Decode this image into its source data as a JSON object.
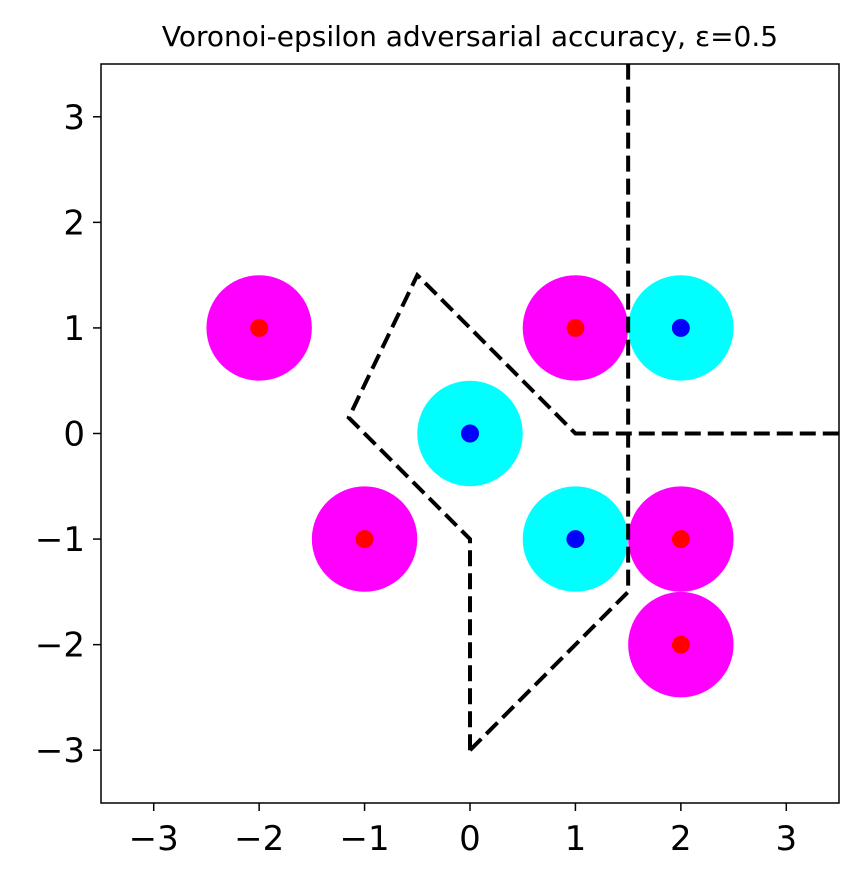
{
  "chart_data": {
    "type": "scatter",
    "title": "Voronoi-epsilon adversarial accuracy, ε=0.5",
    "xlabel": "",
    "ylabel": "",
    "xlim": [
      -3.5,
      3.5
    ],
    "ylim": [
      -3.5,
      3.5
    ],
    "xticks": [
      -3,
      -2,
      -1,
      0,
      1,
      2,
      3
    ],
    "yticks": [
      -3,
      -2,
      -1,
      0,
      1,
      2,
      3
    ],
    "xtick_labels": [
      "−3",
      "−2",
      "−1",
      "0",
      "1",
      "2",
      "3"
    ],
    "ytick_labels": [
      "−3",
      "−2",
      "−1",
      "0",
      "1",
      "2",
      "3"
    ],
    "grid": false,
    "epsilon": 0.5,
    "series": [
      {
        "class": "red",
        "point_color": "#ff0000",
        "ball_color": "#ff00ff",
        "points": [
          [
            -2,
            1
          ],
          [
            1,
            1
          ],
          [
            -1,
            -1
          ],
          [
            2,
            -1
          ],
          [
            2,
            -2
          ]
        ]
      },
      {
        "class": "blue",
        "point_color": "#0000ff",
        "ball_color": "#00ffff",
        "points": [
          [
            2,
            1
          ],
          [
            0,
            0
          ],
          [
            1,
            -1
          ]
        ]
      }
    ],
    "boundaries": [
      {
        "style": "dashed",
        "color": "#000000",
        "points": [
          [
            0,
            -3
          ],
          [
            0,
            -1
          ],
          [
            -1.15,
            0.15
          ],
          [
            -0.5,
            1.5
          ],
          [
            1,
            0
          ],
          [
            3.5,
            0
          ]
        ]
      },
      {
        "style": "dashed",
        "color": "#000000",
        "points": [
          [
            0,
            -3
          ],
          [
            1.5,
            -1.5
          ],
          [
            1.5,
            3.5
          ]
        ]
      }
    ]
  }
}
